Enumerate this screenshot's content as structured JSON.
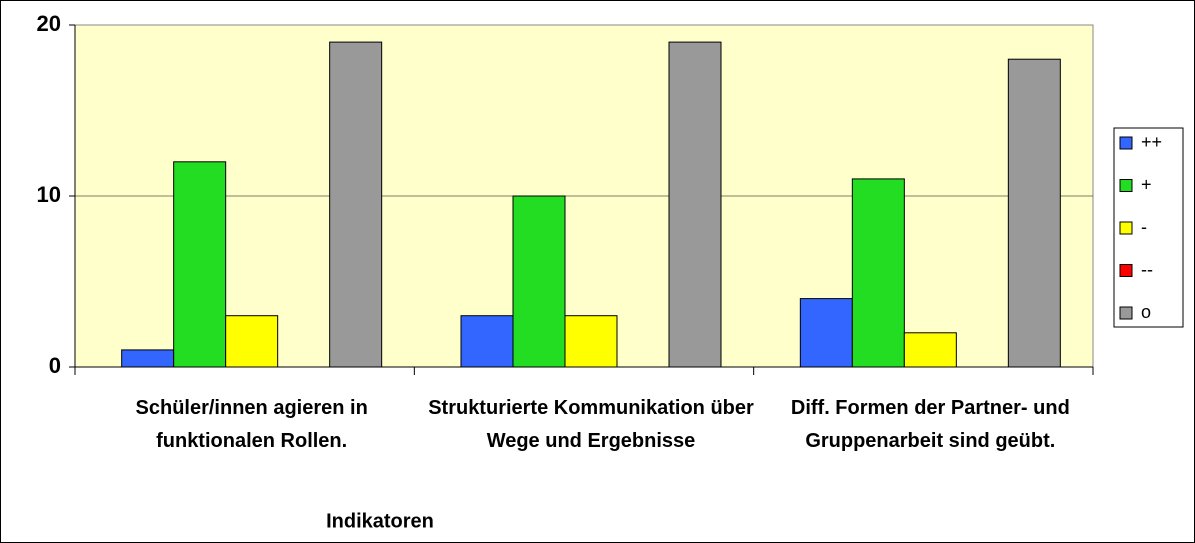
{
  "chart_data": {
    "type": "bar",
    "categories": [
      "Schüler/innen agieren in funktionalen Rollen.",
      "Strukturierte Kommunikation über Wege und Ergebnisse",
      "Diff. Formen der Partner- und Gruppenarbeit sind geübt."
    ],
    "x_label": "Indikatoren",
    "series": [
      {
        "name": "++",
        "color": "#3366ff",
        "values": [
          1,
          3,
          4
        ]
      },
      {
        "name": "+",
        "color": "#22dd22",
        "values": [
          12,
          10,
          11
        ]
      },
      {
        "name": "-",
        "color": "#ffff00",
        "values": [
          3,
          3,
          2
        ]
      },
      {
        "name": "--",
        "color": "#ff0000",
        "values": [
          0,
          0,
          0
        ]
      },
      {
        "name": "o",
        "color": "#999999",
        "values": [
          19,
          19,
          18
        ]
      }
    ],
    "ylim": [
      0,
      20
    ],
    "yticks": [
      0,
      10,
      20
    ],
    "grid": true,
    "legend": "right"
  }
}
